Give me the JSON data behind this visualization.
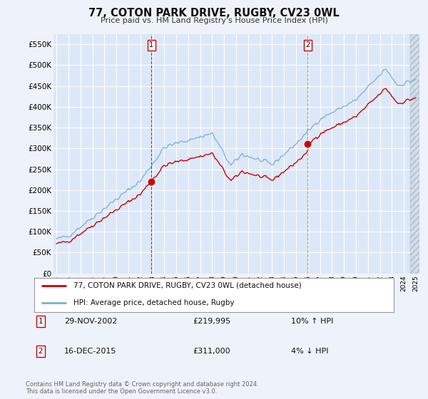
{
  "title": "77, COTON PARK DRIVE, RUGBY, CV23 0WL",
  "subtitle": "Price paid vs. HM Land Registry's House Price Index (HPI)",
  "ylim": [
    0,
    575000
  ],
  "yticks": [
    0,
    50000,
    100000,
    150000,
    200000,
    250000,
    300000,
    350000,
    400000,
    450000,
    500000,
    550000
  ],
  "ytick_labels": [
    "£0",
    "£50K",
    "£100K",
    "£150K",
    "£200K",
    "£250K",
    "£300K",
    "£350K",
    "£400K",
    "£450K",
    "£500K",
    "£550K"
  ],
  "background_color": "#eef2fa",
  "plot_bg": "#dce8f8",
  "grid_color": "#ffffff",
  "transaction1_x": 2002.92,
  "transaction1_y": 219995,
  "transaction1_label": "1",
  "transaction2_x": 2015.96,
  "transaction2_y": 311000,
  "transaction2_label": "2",
  "legend_line1": "77, COTON PARK DRIVE, RUGBY, CV23 0WL (detached house)",
  "legend_line2": "HPI: Average price, detached house, Rugby",
  "table_row1_num": "1",
  "table_row1_date": "29-NOV-2002",
  "table_row1_price": "£219,995",
  "table_row1_hpi": "10% ↑ HPI",
  "table_row2_num": "2",
  "table_row2_date": "16-DEC-2015",
  "table_row2_price": "£311,000",
  "table_row2_hpi": "4% ↓ HPI",
  "footer": "Contains HM Land Registry data © Crown copyright and database right 2024.\nThis data is licensed under the Open Government Licence v3.0.",
  "red_line_color": "#cc0000",
  "blue_line_color": "#7aaed0",
  "vline1_color": "#cc0000",
  "vline2_color": "#888888",
  "xmin": 1995.0,
  "xmax": 2025.0
}
